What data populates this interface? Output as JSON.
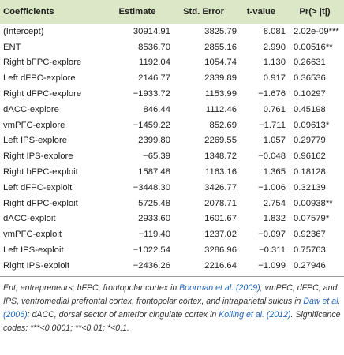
{
  "table": {
    "columns": [
      "Coefficients",
      "Estimate",
      "Std. Error",
      "t-value",
      "Pr(> |t|)"
    ],
    "rows": [
      [
        "(Intercept)",
        "30914.91",
        "3825.79",
        "8.081",
        "2.02e-09***"
      ],
      [
        "ENT",
        "8536.70",
        "2855.16",
        "2.990",
        "0.00516**"
      ],
      [
        "Right bFPC-explore",
        "1192.04",
        "1054.74",
        "1.130",
        "0.26631"
      ],
      [
        "Left dFPC-explore",
        "2146.77",
        "2339.89",
        "0.917",
        "0.36536"
      ],
      [
        "Right dFPC-explore",
        "−1933.72",
        "1153.99",
        "−1.676",
        "0.10297"
      ],
      [
        "dACC-explore",
        "846.44",
        "1112.46",
        "0.761",
        "0.45198"
      ],
      [
        "vmPFC-explore",
        "−1459.22",
        "852.69",
        "−1.711",
        "0.09613*"
      ],
      [
        "Left IPS-explore",
        "2399.80",
        "2269.55",
        "1.057",
        "0.29779"
      ],
      [
        "Right IPS-explore",
        "−65.39",
        "1348.72",
        "−0.048",
        "0.96162"
      ],
      [
        "Right bFPC-exploit",
        "1587.48",
        "1163.16",
        "1.365",
        "0.18128"
      ],
      [
        "Left dFPC-exploit",
        "−3448.30",
        "3426.77",
        "−1.006",
        "0.32139"
      ],
      [
        "Right dFPC-exploit",
        "5725.48",
        "2078.71",
        "2.754",
        "0.00938**"
      ],
      [
        "dACC-exploit",
        "2933.60",
        "1601.67",
        "1.832",
        "0.07579*"
      ],
      [
        "vmPFC-exploit",
        "−119.40",
        "1237.02",
        "−0.097",
        "0.92367"
      ],
      [
        "Left IPS-exploit",
        "−1022.54",
        "3286.96",
        "−0.311",
        "0.75763"
      ],
      [
        "Right IPS-exploit",
        "−2436.26",
        "2216.64",
        "−1.099",
        "0.27946"
      ]
    ]
  },
  "footnote": [
    "Ent, entrepreneurs; bFPC, frontopolar cortex in ",
    "Boorman et al. (2009)",
    "; vmPFC, dFPC, and IPS, ventromedial prefrontal cortex, frontopolar cortex, and intraparietal sulcus in ",
    "Daw et al. (2006)",
    "; dACC, dorsal sector of anterior cingulate cortex in ",
    "Kolling et al. (2012)",
    ". Significance codes: ***<0.0001; **<0.01; *<0.1."
  ]
}
